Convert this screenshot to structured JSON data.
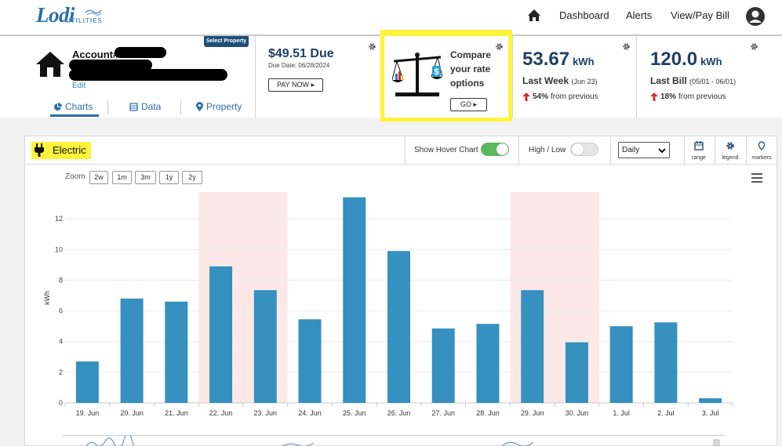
{
  "brand": {
    "name": "Lodi",
    "sub": "UTILITIES"
  },
  "nav": {
    "home_icon": "home-icon",
    "dashboard": "Dashboard",
    "alerts": "Alerts",
    "view_pay_bill": "View/Pay Bill",
    "user_icon": "user-circle-icon"
  },
  "account": {
    "label": "Account#",
    "edit": "Edit",
    "select_property": "Select Property",
    "tabs": [
      {
        "label": "Charts",
        "icon": "pie-icon"
      },
      {
        "label": "Data",
        "icon": "table-icon"
      },
      {
        "label": "Property",
        "icon": "pin-icon"
      }
    ]
  },
  "bill": {
    "amount": "$49.51 Due",
    "due_date": "Due Date: 06/28/2024",
    "pay_now": "PAY NOW"
  },
  "compare": {
    "line1": "Compare",
    "line2": "your rate",
    "line3": "options",
    "go": "GO"
  },
  "last_week": {
    "value": "53.67",
    "unit": "kWh",
    "label": "Last Week",
    "sub": "(Jun 23)",
    "change": "54%",
    "change_suffix": "from previous"
  },
  "last_bill": {
    "value": "120.0",
    "unit": "kWh",
    "label": "Last Bill",
    "sub": "(05/01 - 06/01)",
    "change": "18%",
    "change_suffix": "from previous"
  },
  "chart_card": {
    "title": "Electric",
    "hover_label": "Show Hover Chart",
    "highlow_label": "High / Low",
    "period": "Daily",
    "tools": [
      "range",
      "legend",
      "markers"
    ],
    "zoom_label": "Zoom",
    "zoom_options": [
      "2w",
      "1m",
      "3m",
      "1y",
      "2y"
    ]
  },
  "colors": {
    "bar": "#3690c0",
    "weekend_band": "#fde8e8",
    "brand": "#1f3f66",
    "toggle_on": "#5cb85c",
    "toggle_off": "#e6e6e6",
    "highlight": "#fff43a",
    "arrow_up": "#d03030"
  },
  "chart_data": {
    "type": "bar",
    "categories": [
      "19. Jun",
      "20. Jun",
      "21. Jun",
      "22. Jun",
      "23. Jun",
      "24. Jun",
      "25. Jun",
      "26. Jun",
      "27. Jun",
      "28. Jun",
      "29. Jun",
      "30. Jun",
      "1. Jul",
      "2. Jul",
      "3. Jul"
    ],
    "values": [
      2.7,
      6.8,
      6.6,
      8.9,
      7.35,
      5.45,
      13.4,
      9.9,
      4.85,
      5.15,
      7.35,
      3.95,
      5.0,
      5.25,
      0.3
    ],
    "ylabel": "kWh",
    "ylim": [
      0,
      14
    ],
    "yticks": [
      0,
      2,
      4,
      6,
      8,
      10,
      12
    ],
    "weekend_bands": [
      [
        3,
        4
      ],
      [
        10,
        11
      ]
    ],
    "grid": true
  }
}
